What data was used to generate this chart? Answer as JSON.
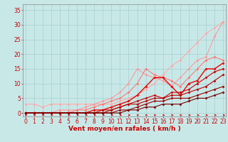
{
  "background_color": "#c8e8e8",
  "grid_color": "#a0c8c8",
  "xlabel": "Vent moyen/en rafales ( km/h )",
  "xlabel_color": "#cc0000",
  "xlabel_fontsize": 6.5,
  "tick_fontsize": 5.5,
  "tick_color": "#cc0000",
  "spine_color": "#888888",
  "x_ticks": [
    0,
    1,
    2,
    3,
    4,
    5,
    6,
    7,
    8,
    9,
    10,
    11,
    12,
    13,
    14,
    15,
    16,
    17,
    18,
    19,
    20,
    21,
    22,
    23
  ],
  "y_ticks": [
    0,
    5,
    10,
    15,
    20,
    25,
    30,
    35
  ],
  "xlim": [
    -0.3,
    23.3
  ],
  "ylim": [
    -1.2,
    37
  ],
  "series": [
    {
      "x": [
        0,
        1,
        2,
        3,
        4,
        5,
        6,
        7,
        8,
        9,
        10,
        11,
        12,
        13,
        14,
        15,
        16,
        17,
        18,
        19,
        20,
        21,
        22,
        23
      ],
      "y": [
        3,
        3,
        2,
        3,
        3,
        3,
        3,
        3,
        3,
        3,
        3,
        4,
        5,
        6,
        8,
        10,
        13,
        16,
        18,
        21,
        24,
        27,
        29,
        31
      ],
      "color": "#ffaaaa",
      "lw": 0.8,
      "ms": 1.8
    },
    {
      "x": [
        0,
        1,
        2,
        3,
        4,
        5,
        6,
        7,
        8,
        9,
        10,
        11,
        12,
        13,
        14,
        15,
        16,
        17,
        18,
        19,
        20,
        21,
        22,
        23
      ],
      "y": [
        0,
        0,
        0,
        0,
        1,
        1,
        1,
        2,
        3,
        4,
        5,
        7,
        10,
        15,
        13,
        12,
        11,
        9,
        12,
        15,
        18,
        19,
        26,
        31
      ],
      "color": "#ff9999",
      "lw": 0.8,
      "ms": 1.8
    },
    {
      "x": [
        0,
        1,
        2,
        3,
        4,
        5,
        6,
        7,
        8,
        9,
        10,
        11,
        12,
        13,
        14,
        15,
        16,
        17,
        18,
        19,
        20,
        21,
        22,
        23
      ],
      "y": [
        0,
        0,
        0,
        0,
        0,
        0,
        1,
        1,
        2,
        3,
        4,
        5,
        7,
        10,
        15,
        13,
        12,
        11,
        9,
        12,
        15,
        18,
        19,
        18
      ],
      "color": "#ff7777",
      "lw": 0.8,
      "ms": 1.8
    },
    {
      "x": [
        0,
        1,
        2,
        3,
        4,
        5,
        6,
        7,
        8,
        9,
        10,
        11,
        12,
        13,
        14,
        15,
        16,
        17,
        18,
        19,
        20,
        21,
        22,
        23
      ],
      "y": [
        0,
        0,
        0,
        0,
        0,
        0,
        0,
        0,
        1,
        1,
        2,
        3,
        4,
        6,
        9,
        12,
        12,
        9,
        6,
        10,
        11,
        15,
        15,
        17
      ],
      "color": "#ee0000",
      "lw": 1.0,
      "ms": 1.8
    },
    {
      "x": [
        0,
        1,
        2,
        3,
        4,
        5,
        6,
        7,
        8,
        9,
        10,
        11,
        12,
        13,
        14,
        15,
        16,
        17,
        18,
        19,
        20,
        21,
        22,
        23
      ],
      "y": [
        0,
        0,
        0,
        0,
        0,
        0,
        0,
        0,
        0,
        1,
        1,
        2,
        3,
        4,
        5,
        6,
        5,
        7,
        7,
        8,
        10,
        12,
        14,
        15
      ],
      "color": "#cc0000",
      "lw": 0.8,
      "ms": 1.8
    },
    {
      "x": [
        0,
        1,
        2,
        3,
        4,
        5,
        6,
        7,
        8,
        9,
        10,
        11,
        12,
        13,
        14,
        15,
        16,
        17,
        18,
        19,
        20,
        21,
        22,
        23
      ],
      "y": [
        0,
        0,
        0,
        0,
        0,
        0,
        0,
        0,
        0,
        0,
        1,
        2,
        3,
        3,
        4,
        5,
        5,
        6,
        6,
        7,
        8,
        9,
        11,
        13
      ],
      "color": "#bb0000",
      "lw": 0.8,
      "ms": 1.8
    },
    {
      "x": [
        0,
        1,
        2,
        3,
        4,
        5,
        6,
        7,
        8,
        9,
        10,
        11,
        12,
        13,
        14,
        15,
        16,
        17,
        18,
        19,
        20,
        21,
        22,
        23
      ],
      "y": [
        0,
        0,
        0,
        0,
        0,
        0,
        0,
        0,
        0,
        0,
        0,
        1,
        1,
        2,
        3,
        4,
        4,
        5,
        5,
        5,
        6,
        7,
        8,
        9
      ],
      "color": "#990000",
      "lw": 0.8,
      "ms": 1.8
    },
    {
      "x": [
        0,
        1,
        2,
        3,
        4,
        5,
        6,
        7,
        8,
        9,
        10,
        11,
        12,
        13,
        14,
        15,
        16,
        17,
        18,
        19,
        20,
        21,
        22,
        23
      ],
      "y": [
        0,
        0,
        0,
        0,
        0,
        0,
        0,
        0,
        0,
        0,
        0,
        0,
        1,
        1,
        2,
        2,
        3,
        3,
        3,
        4,
        5,
        5,
        6,
        7
      ],
      "color": "#770000",
      "lw": 0.8,
      "ms": 1.8
    }
  ]
}
